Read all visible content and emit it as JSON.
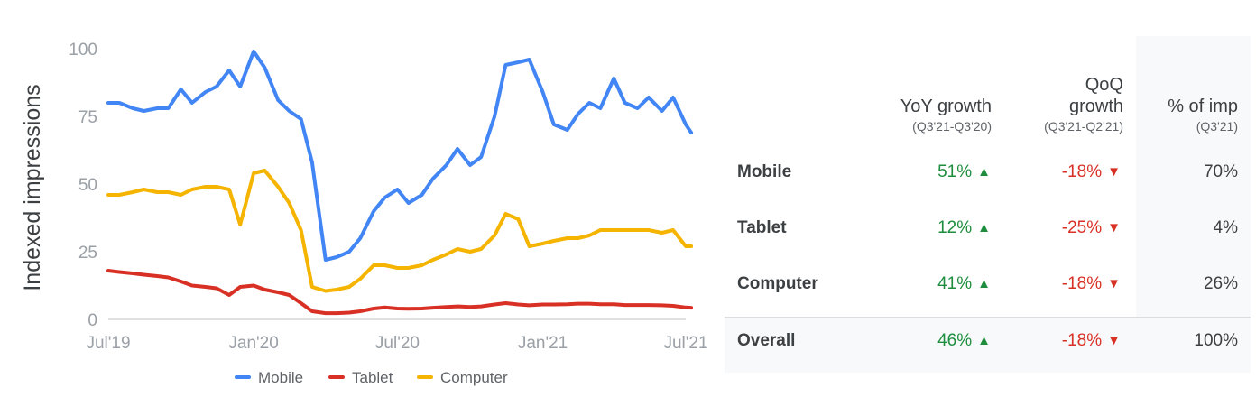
{
  "chart_data": {
    "type": "line",
    "ylabel": "Indexed impressions",
    "ylim": [
      0,
      100
    ],
    "y_ticks": [
      "0",
      "25",
      "50",
      "75",
      "100"
    ],
    "x_ticks": [
      "Jul'19",
      "Jan'20",
      "Jul'20",
      "Jan'21",
      "Jul'21"
    ],
    "x": [
      "2019-07-01",
      "2019-07-15",
      "2019-08-01",
      "2019-08-15",
      "2019-09-01",
      "2019-09-15",
      "2019-10-01",
      "2019-10-15",
      "2019-11-01",
      "2019-11-15",
      "2019-12-01",
      "2019-12-15",
      "2020-01-01",
      "2020-01-15",
      "2020-02-01",
      "2020-02-15",
      "2020-03-01",
      "2020-03-15",
      "2020-04-01",
      "2020-04-15",
      "2020-05-01",
      "2020-05-15",
      "2020-06-01",
      "2020-06-15",
      "2020-07-01",
      "2020-07-15",
      "2020-08-01",
      "2020-08-15",
      "2020-09-01",
      "2020-09-15",
      "2020-10-01",
      "2020-10-15",
      "2020-11-01",
      "2020-11-15",
      "2020-12-01",
      "2020-12-15",
      "2021-01-01",
      "2021-01-15",
      "2021-02-01",
      "2021-02-15",
      "2021-03-01",
      "2021-03-15",
      "2021-04-01",
      "2021-04-15",
      "2021-05-01",
      "2021-05-15",
      "2021-06-01",
      "2021-06-15",
      "2021-07-01",
      "2021-07-08"
    ],
    "series": [
      {
        "name": "Mobile",
        "color": "#4285f4",
        "values": [
          80,
          80,
          78,
          77,
          78,
          78,
          85,
          80,
          84,
          86,
          92,
          86,
          99,
          93,
          81,
          77,
          74,
          58,
          22,
          23,
          25,
          30,
          40,
          45,
          48,
          43,
          46,
          52,
          57,
          63,
          57,
          60,
          75,
          94,
          95,
          96,
          84,
          72,
          70,
          76,
          80,
          78,
          89,
          80,
          78,
          82,
          77,
          82,
          72,
          69
        ]
      },
      {
        "name": "Tablet",
        "color": "#d93025",
        "values": [
          18,
          17.5,
          17,
          16.5,
          16,
          15.5,
          14,
          12.5,
          12,
          11.5,
          9,
          12,
          12.5,
          11,
          10,
          9,
          6,
          3,
          2.3,
          2.3,
          2.5,
          3,
          4,
          4.4,
          4,
          3.9,
          4,
          4.3,
          4.6,
          4.8,
          4.6,
          4.8,
          5.5,
          6,
          5.5,
          5.2,
          5.5,
          5.5,
          5.6,
          5.8,
          5.8,
          5.6,
          5.6,
          5.3,
          5.3,
          5.3,
          5.2,
          5,
          4.4,
          4.3
        ]
      },
      {
        "name": "Computer",
        "color": "#f4b400",
        "values": [
          46,
          46,
          47,
          48,
          47,
          47,
          46,
          48,
          49,
          49,
          48,
          35,
          54,
          55,
          49,
          43,
          33,
          12,
          10.5,
          11,
          12,
          15,
          20,
          20,
          19,
          19,
          20,
          22,
          24,
          26,
          25,
          26,
          31,
          39,
          37,
          27,
          28,
          29,
          30,
          30,
          31,
          33,
          33,
          33,
          33,
          33,
          32,
          33,
          27,
          27
        ]
      }
    ]
  },
  "legend": {
    "mobile": "Mobile",
    "tablet": "Tablet",
    "computer": "Computer"
  },
  "table": {
    "headers": {
      "yoy_title": "YoY growth",
      "yoy_sub": "(Q3'21-Q3'20)",
      "qoq_title_1": "QoQ",
      "qoq_title_2": "growth",
      "qoq_sub": "(Q3'21-Q2'21)",
      "imp_title": "% of imp",
      "imp_sub": "(Q3'21)"
    },
    "rows": [
      {
        "label": "Mobile",
        "yoy": "51%",
        "qoq": "-18%",
        "imp": "70%"
      },
      {
        "label": "Tablet",
        "yoy": "12%",
        "qoq": "-25%",
        "imp": "4%"
      },
      {
        "label": "Computer",
        "yoy": "41%",
        "qoq": "-18%",
        "imp": "26%"
      },
      {
        "label": "Overall",
        "yoy": "46%",
        "qoq": "-18%",
        "imp": "100%"
      }
    ],
    "up_arrow": "▲",
    "down_arrow": "▼"
  }
}
